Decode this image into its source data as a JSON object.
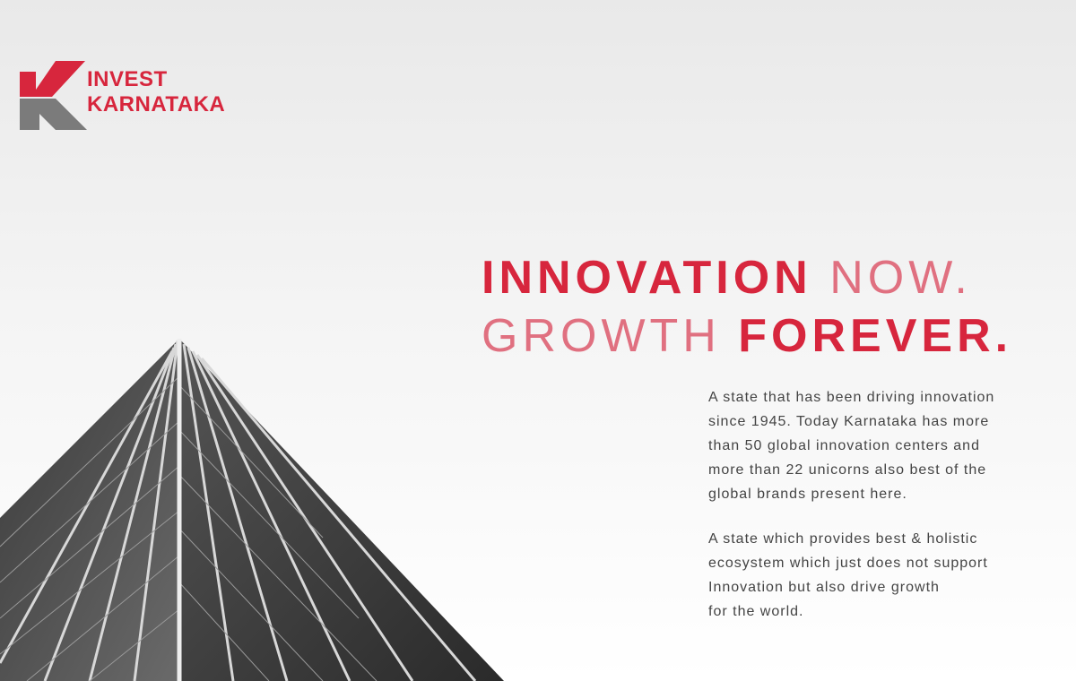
{
  "logo": {
    "line1": "INVEST",
    "line2": "KARNATAKA"
  },
  "headline": {
    "line1_bold": "INNOVATION",
    "line1_light": "NOW.",
    "line2_light": "GROWTH",
    "line2_bold": "FOREVER."
  },
  "paragraphs": [
    [
      "A state that has been driving innovation",
      "since 1945. Today Karnataka has more",
      "than 50 global innovation centers and",
      "more than 22 unicorns also best of the",
      "global brands present here."
    ],
    [
      "A state which provides best & holistic",
      "ecosystem which just does not support",
      "Innovation but also drive growth",
      "for the world."
    ]
  ]
}
